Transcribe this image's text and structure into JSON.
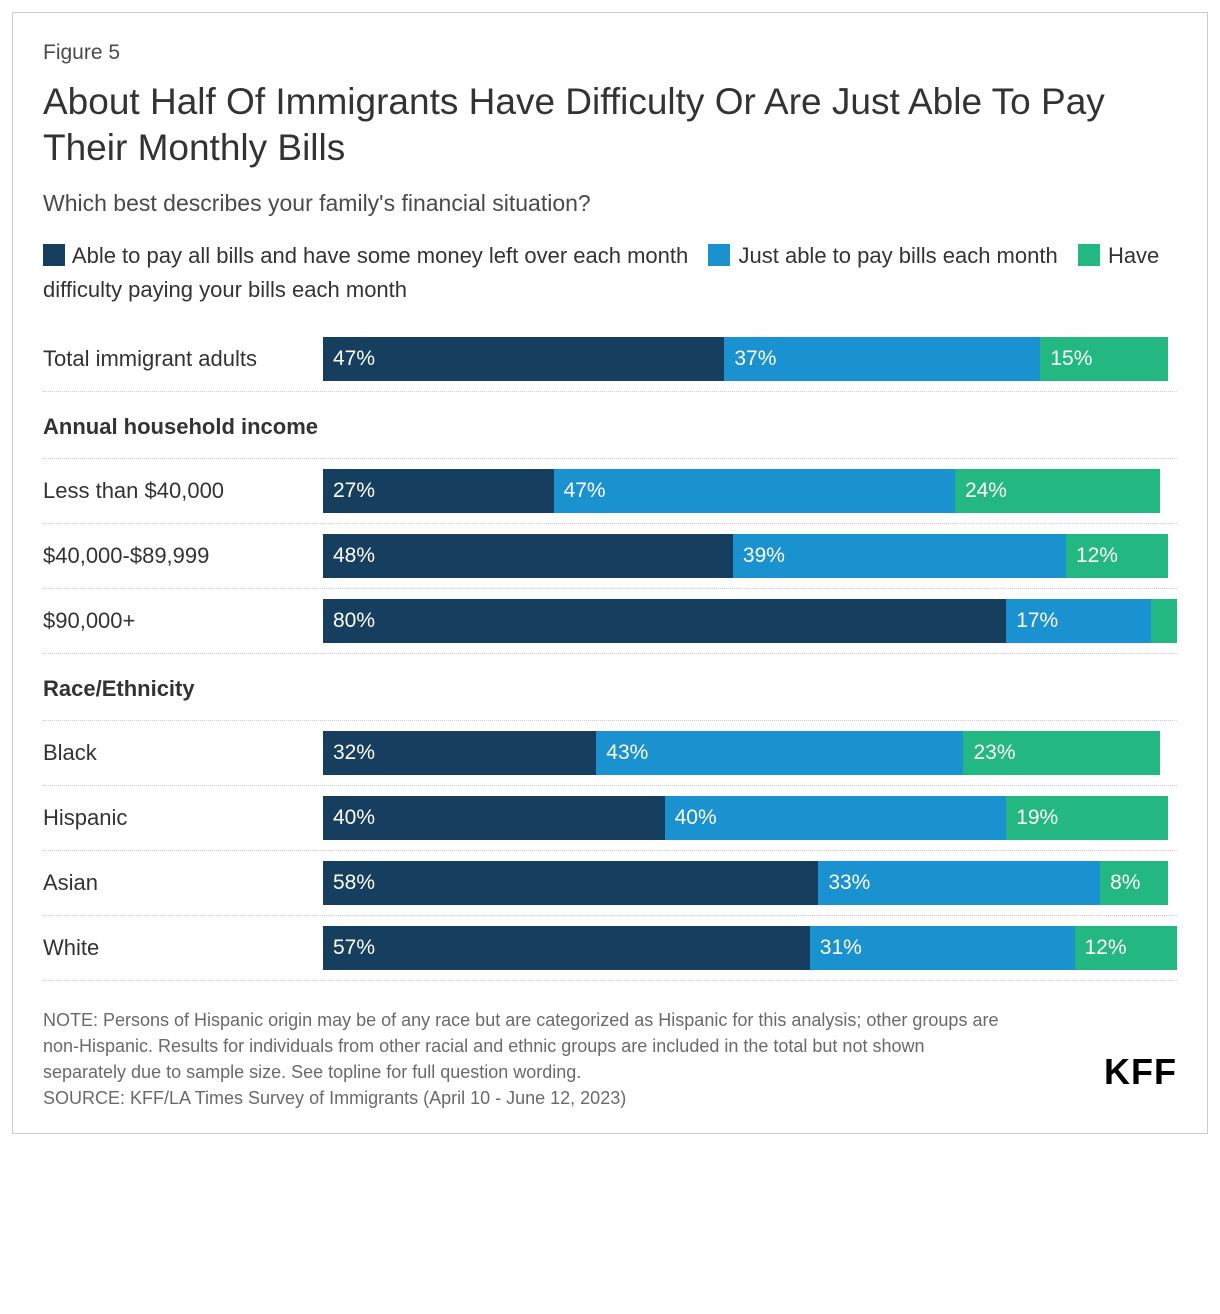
{
  "figure_number": "Figure 5",
  "title": "About Half Of Immigrants Have Difficulty Or Are Just Able To Pay Their Monthly Bills",
  "subtitle": "Which best describes your family's financial situation?",
  "colors": {
    "series1": "#153e5f",
    "series2": "#1a92d0",
    "series3": "#23b882",
    "text": "#333333",
    "subtext": "#4a4a4a",
    "divider": "#cccccc",
    "bg": "#ffffff"
  },
  "legend": {
    "s1": "Able to pay all bills and have some money left over each month",
    "s2": "Just able to pay bills each month",
    "s3": "Have difficulty paying your bills each month"
  },
  "chart": {
    "type": "stacked_horizontal_bar",
    "bar_scale_percent": 100,
    "series_keys": [
      "s1",
      "s2",
      "s3"
    ],
    "groups": [
      {
        "header": null,
        "rows": [
          {
            "label": "Total immigrant adults",
            "values": {
              "s1": 47,
              "s2": 37,
              "s3": 15
            },
            "hide": []
          }
        ]
      },
      {
        "header": "Annual household income",
        "rows": [
          {
            "label": "Less than $40,000",
            "values": {
              "s1": 27,
              "s2": 47,
              "s3": 24
            },
            "hide": []
          },
          {
            "label": "$40,000-$89,999",
            "values": {
              "s1": 48,
              "s2": 39,
              "s3": 12
            },
            "hide": []
          },
          {
            "label": "$90,000+",
            "values": {
              "s1": 80,
              "s2": 17,
              "s3": 3
            },
            "hide": [
              "s3"
            ]
          }
        ]
      },
      {
        "header": "Race/Ethnicity",
        "rows": [
          {
            "label": "Black",
            "values": {
              "s1": 32,
              "s2": 43,
              "s3": 23
            },
            "hide": []
          },
          {
            "label": "Hispanic",
            "values": {
              "s1": 40,
              "s2": 40,
              "s3": 19
            },
            "hide": []
          },
          {
            "label": "Asian",
            "values": {
              "s1": 58,
              "s2": 33,
              "s3": 8
            },
            "hide": []
          },
          {
            "label": "White",
            "values": {
              "s1": 57,
              "s2": 31,
              "s3": 12
            },
            "hide": []
          }
        ]
      }
    ]
  },
  "footnote_note": "NOTE: Persons of Hispanic origin may be of any race but are categorized as Hispanic for this analysis; other groups are non-Hispanic. Results for individuals from other racial and ethnic groups are included in the total but not shown separately due to sample size. See topline for full question wording.",
  "footnote_source": "SOURCE: KFF/LA Times Survey of Immigrants (April 10 - June 12, 2023)",
  "logo": "KFF"
}
